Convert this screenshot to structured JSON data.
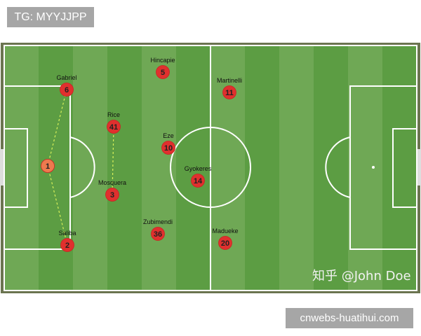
{
  "top_tag": "TG: MYYJJPP",
  "site_tag": "cnwebs-huatihui.com",
  "watermark": "知乎 @John Doe",
  "colors": {
    "stripe_light": "#6fa855",
    "stripe_dark": "#5c9d43",
    "player": "#e0302e",
    "goalkeeper": "#ee7a4e",
    "link": "#d8f05a"
  },
  "players": [
    {
      "name": "",
      "number": "1",
      "role": "goalkeeper"
    },
    {
      "name": "Gabriel",
      "number": "6"
    },
    {
      "name": "Saliba",
      "number": "2"
    },
    {
      "name": "Hincapie",
      "number": "5"
    },
    {
      "name": "Rice",
      "number": "41"
    },
    {
      "name": "Mosquera",
      "number": "3"
    },
    {
      "name": "Eze",
      "number": "10"
    },
    {
      "name": "Zubimendi",
      "number": "36"
    },
    {
      "name": "Gyokeres",
      "number": "14"
    },
    {
      "name": "Martinelli",
      "number": "11"
    },
    {
      "name": "Madueke",
      "number": "20"
    }
  ],
  "links": [
    [
      "1",
      "6"
    ],
    [
      "1",
      "2"
    ],
    [
      "41",
      "3"
    ]
  ]
}
